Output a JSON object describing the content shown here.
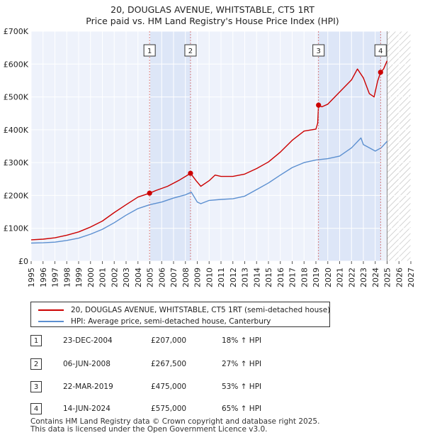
{
  "chart_data": {
    "type": "line",
    "title": "20, DOUGLAS AVENUE, WHITSTABLE, CT5 1RT",
    "subtitle": "Price paid vs. HM Land Registry's House Price Index (HPI)",
    "xlim": [
      1995,
      2027
    ],
    "ylim": [
      0,
      700000
    ],
    "y_ticks": [
      0,
      100000,
      200000,
      300000,
      400000,
      500000,
      600000,
      700000
    ],
    "y_tick_labels": [
      "£0",
      "£100K",
      "£200K",
      "£300K",
      "£400K",
      "£500K",
      "£600K",
      "£700K"
    ],
    "x_ticks": [
      1995,
      1996,
      1997,
      1998,
      1999,
      2000,
      2001,
      2002,
      2003,
      2004,
      2005,
      2006,
      2007,
      2008,
      2009,
      2010,
      2011,
      2012,
      2013,
      2014,
      2015,
      2016,
      2017,
      2018,
      2019,
      2020,
      2021,
      2022,
      2023,
      2024,
      2025,
      2026,
      2027
    ],
    "x_tick_labels": [
      "1995",
      "1996",
      "1997",
      "1998",
      "1999",
      "2000",
      "2001",
      "2002",
      "2003",
      "2004",
      "2005",
      "2006",
      "2007",
      "2008",
      "2009",
      "2010",
      "2011",
      "2012",
      "2013",
      "2014",
      "2015",
      "2016",
      "2017",
      "2018",
      "2019",
      "2020",
      "2021",
      "2022",
      "2023",
      "2024",
      "2025",
      "2026",
      "2027"
    ],
    "grid": true,
    "forecast_start": 2025.0,
    "series": [
      {
        "name": "20, DOUGLAS AVENUE, WHITSTABLE, CT5 1RT (semi-detached house)",
        "color": "#cc0000",
        "x": [
          1995.0,
          1996.0,
          1997.0,
          1998.0,
          1999.0,
          2000.0,
          2001.0,
          2002.0,
          2003.0,
          2004.0,
          2004.98,
          2005.5,
          2006.5,
          2007.5,
          2008.0,
          2008.43,
          2008.9,
          2009.3,
          2010.0,
          2010.5,
          2011.0,
          2012.0,
          2013.0,
          2014.0,
          2015.0,
          2016.0,
          2017.0,
          2018.0,
          2019.0,
          2019.15,
          2019.22,
          2019.5,
          2020.0,
          2021.0,
          2022.0,
          2022.5,
          2023.0,
          2023.5,
          2023.9,
          2024.2,
          2024.45,
          2024.7,
          2025.0
        ],
        "values": [
          65000,
          67000,
          71000,
          79000,
          89000,
          104000,
          122000,
          148000,
          172000,
          195000,
          207000,
          215000,
          228000,
          247000,
          258000,
          267500,
          245000,
          228000,
          245000,
          262000,
          258000,
          258000,
          265000,
          282000,
          302000,
          332000,
          368000,
          396000,
          402000,
          420000,
          475000,
          470000,
          478000,
          515000,
          552000,
          585000,
          558000,
          510000,
          500000,
          548000,
          575000,
          585000,
          610000
        ]
      },
      {
        "name": "HPI: Average price, semi-detached house, Canterbury",
        "color": "#5b8fd0",
        "x": [
          1995.0,
          1996.0,
          1997.0,
          1998.0,
          1999.0,
          2000.0,
          2001.0,
          2002.0,
          2003.0,
          2004.0,
          2005.0,
          2006.0,
          2007.0,
          2008.0,
          2008.5,
          2009.0,
          2009.3,
          2010.0,
          2011.0,
          2012.0,
          2013.0,
          2014.0,
          2015.0,
          2016.0,
          2017.0,
          2018.0,
          2019.0,
          2020.0,
          2021.0,
          2022.0,
          2022.8,
          2023.0,
          2023.5,
          2024.0,
          2024.5,
          2025.0
        ],
        "values": [
          55000,
          56000,
          58000,
          63000,
          70000,
          82000,
          97000,
          117000,
          140000,
          160000,
          172000,
          180000,
          192000,
          202000,
          210000,
          180000,
          175000,
          185000,
          188000,
          190000,
          198000,
          218000,
          238000,
          262000,
          285000,
          300000,
          308000,
          312000,
          320000,
          345000,
          375000,
          355000,
          345000,
          335000,
          345000,
          365000
        ]
      }
    ],
    "sale_markers": [
      {
        "label": "1",
        "x": 2004.98,
        "value": 207000
      },
      {
        "label": "2",
        "x": 2008.43,
        "value": 267500
      },
      {
        "label": "3",
        "x": 2019.22,
        "value": 475000
      },
      {
        "label": "4",
        "x": 2024.45,
        "value": 575000
      }
    ],
    "shaded_periods": [
      [
        2004.98,
        2008.43
      ],
      [
        2019.22,
        2024.45
      ]
    ]
  },
  "legend": {
    "property_label": "20, DOUGLAS AVENUE, WHITSTABLE, CT5 1RT (semi-detached house)",
    "hpi_label": "HPI: Average price, semi-detached house, Canterbury"
  },
  "sales": [
    {
      "num": "1",
      "date": "23-DEC-2004",
      "price": "£207,000",
      "hpi": "18% ↑ HPI"
    },
    {
      "num": "2",
      "date": "06-JUN-2008",
      "price": "£267,500",
      "hpi": "27% ↑ HPI"
    },
    {
      "num": "3",
      "date": "22-MAR-2019",
      "price": "£475,000",
      "hpi": "53% ↑ HPI"
    },
    {
      "num": "4",
      "date": "14-JUN-2024",
      "price": "£575,000",
      "hpi": "65% ↑ HPI"
    }
  ],
  "footer": {
    "line1": "Contains HM Land Registry data © Crown copyright and database right 2025.",
    "line2": "This data is licensed under the Open Government Licence v3.0."
  }
}
